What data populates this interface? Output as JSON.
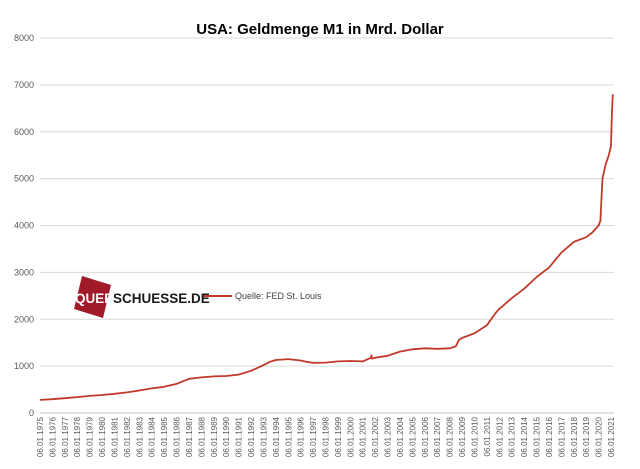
{
  "chart_data": {
    "type": "line",
    "title": "USA: Geldmenge M1 in Mrd. Dollar",
    "xlabel": "",
    "ylabel": "",
    "ylim": [
      0,
      8000
    ],
    "yticks": [
      0,
      1000,
      2000,
      3000,
      4000,
      5000,
      6000,
      7000,
      8000
    ],
    "xticks": [
      "06.01.1975",
      "06.01.1976",
      "06.01.1977",
      "06.01.1978",
      "06.01.1979",
      "06.01.1980",
      "06.01.1981",
      "06.01.1982",
      "06.01.1983",
      "06.01.1984",
      "06.01.1985",
      "06.01.1986",
      "06.01.1987",
      "06.01.1988",
      "06.01.1989",
      "06.01.1990",
      "06.01.1991",
      "06.01.1992",
      "06.01.1993",
      "06.01.1994",
      "06.01.1995",
      "06.01.1996",
      "06.01.1997",
      "06.01.1998",
      "06.01.1999",
      "06.01.2000",
      "06.01.2001",
      "06.01.2002",
      "06.01.2003",
      "06.01.2004",
      "06.01.2005",
      "06.01.2006",
      "06.01.2007",
      "06.01.2008",
      "06.01.2009",
      "06.01.2010",
      "06.01.2011",
      "06.01.2012",
      "06.01.2013",
      "06.01.2014",
      "06.01.2015",
      "06.01.2016",
      "06.01.2017",
      "06.01.2018",
      "06.01.2019",
      "06.01.2020",
      "06.01.2021"
    ],
    "grid": true,
    "legend": {
      "position": "left-middle"
    },
    "series": [
      {
        "name": "Quelle: FED St. Louis",
        "color": "#c0392b",
        "points": [
          [
            "1975-01-06",
            280
          ],
          [
            "1976-01-06",
            295
          ],
          [
            "1977-01-06",
            315
          ],
          [
            "1978-01-06",
            340
          ],
          [
            "1979-01-06",
            365
          ],
          [
            "1980-01-06",
            385
          ],
          [
            "1981-01-06",
            410
          ],
          [
            "1982-01-06",
            440
          ],
          [
            "1983-01-06",
            480
          ],
          [
            "1984-01-06",
            525
          ],
          [
            "1985-01-06",
            560
          ],
          [
            "1986-01-06",
            620
          ],
          [
            "1987-01-06",
            730
          ],
          [
            "1988-01-06",
            760
          ],
          [
            "1989-01-06",
            780
          ],
          [
            "1990-01-06",
            790
          ],
          [
            "1991-01-06",
            820
          ],
          [
            "1992-01-06",
            900
          ],
          [
            "1993-01-06",
            1020
          ],
          [
            "1993-07-06",
            1090
          ],
          [
            "1994-01-06",
            1130
          ],
          [
            "1995-01-06",
            1150
          ],
          [
            "1996-01-06",
            1120
          ],
          [
            "1996-07-06",
            1090
          ],
          [
            "1997-01-06",
            1070
          ],
          [
            "1998-01-06",
            1075
          ],
          [
            "1999-01-06",
            1100
          ],
          [
            "2000-01-06",
            1110
          ],
          [
            "2001-01-06",
            1100
          ],
          [
            "2001-09-10",
            1180
          ],
          [
            "2001-09-17",
            1230
          ],
          [
            "2001-10-01",
            1160
          ],
          [
            "2002-01-06",
            1180
          ],
          [
            "2003-01-06",
            1220
          ],
          [
            "2004-01-06",
            1310
          ],
          [
            "2005-01-06",
            1360
          ],
          [
            "2006-01-06",
            1380
          ],
          [
            "2007-01-06",
            1370
          ],
          [
            "2008-01-06",
            1380
          ],
          [
            "2008-07-06",
            1420
          ],
          [
            "2008-10-06",
            1560
          ],
          [
            "2009-01-06",
            1600
          ],
          [
            "2010-01-06",
            1700
          ],
          [
            "2011-01-06",
            1870
          ],
          [
            "2011-09-06",
            2120
          ],
          [
            "2012-01-06",
            2220
          ],
          [
            "2013-01-06",
            2450
          ],
          [
            "2014-01-06",
            2650
          ],
          [
            "2015-01-06",
            2900
          ],
          [
            "2016-01-06",
            3100
          ],
          [
            "2017-01-06",
            3420
          ],
          [
            "2018-01-06",
            3650
          ],
          [
            "2019-01-06",
            3750
          ],
          [
            "2019-07-06",
            3850
          ],
          [
            "2020-01-06",
            4000
          ],
          [
            "2020-03-01",
            4100
          ],
          [
            "2020-04-01",
            4600
          ],
          [
            "2020-05-01",
            5000
          ],
          [
            "2020-08-01",
            5300
          ],
          [
            "2020-11-01",
            5500
          ],
          [
            "2021-01-06",
            5700
          ],
          [
            "2021-02-01",
            6400
          ],
          [
            "2021-03-01",
            6800
          ]
        ]
      }
    ]
  },
  "logo": {
    "prefix": "QUER",
    "suffix": "SCHUESSE.DE",
    "color": "#a01a2a"
  }
}
